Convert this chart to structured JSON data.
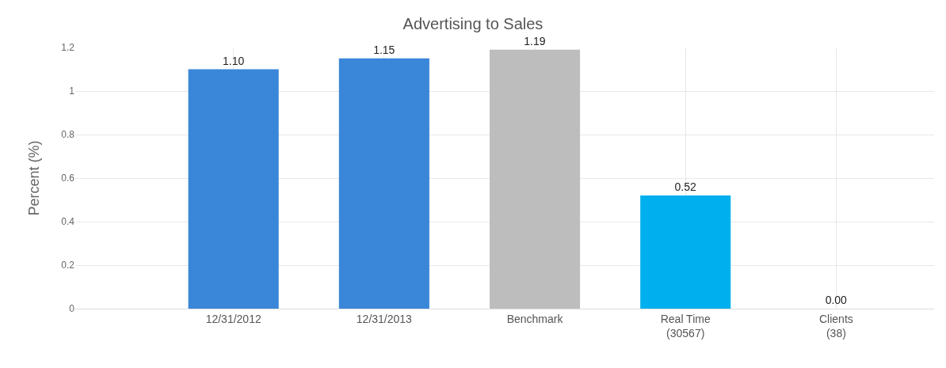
{
  "chart_data": {
    "type": "bar",
    "title": "Advertising to Sales",
    "ylabel": "Percent (%)",
    "categories": [
      "12/31/2012",
      "12/31/2013",
      "Benchmark",
      "Real Time\n(30567)",
      "Clients\n(38)"
    ],
    "values": [
      1.1,
      1.15,
      1.19,
      0.52,
      0.0
    ],
    "colors": [
      "#3a86d8",
      "#3a86d8",
      "#bdbdbd",
      "#00b0ee",
      "#00b0ee"
    ],
    "value_labels": [
      "1.10",
      "1.15",
      "1.19",
      "0.52",
      "0.00"
    ],
    "ylim": [
      0,
      1.2
    ],
    "yticks": [
      0,
      0.2,
      0.4,
      0.6,
      0.8,
      1,
      1.2
    ],
    "grid": true,
    "legend": false
  }
}
